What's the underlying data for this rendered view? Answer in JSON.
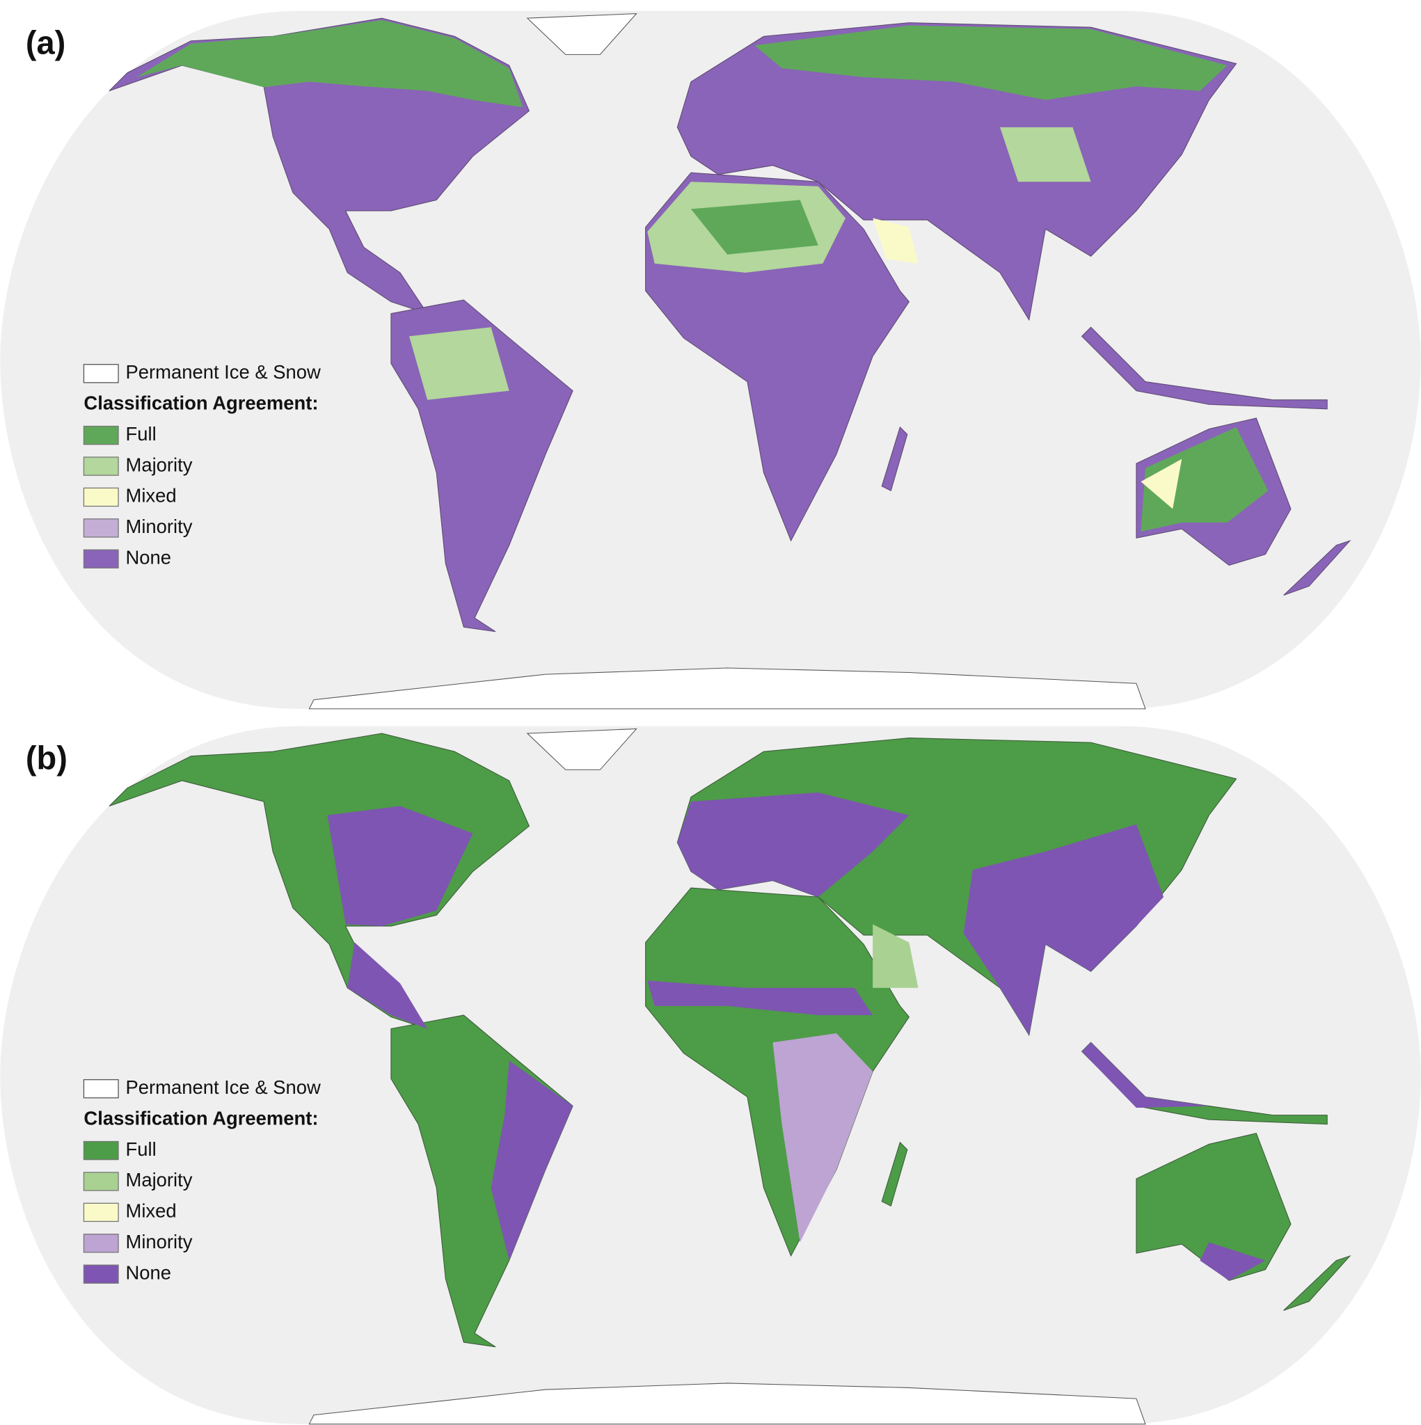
{
  "panels": [
    {
      "label": "(a)",
      "legend": {
        "ice_label": "Permanent Ice & Snow",
        "title": "Classification Agreement:",
        "items": [
          {
            "label": "Full",
            "color": "#5fa85a"
          },
          {
            "label": "Majority",
            "color": "#b3d79c"
          },
          {
            "label": "Mixed",
            "color": "#fafac8"
          },
          {
            "label": "Minority",
            "color": "#c4aed6"
          },
          {
            "label": "None",
            "color": "#8a64b8"
          }
        ]
      }
    },
    {
      "label": "(b)",
      "legend": {
        "ice_label": "Permanent Ice & Snow",
        "title": "Classification Agreement:",
        "items": [
          {
            "label": "Full",
            "color": "#4d9c47"
          },
          {
            "label": "Majority",
            "color": "#a9d192"
          },
          {
            "label": "Mixed",
            "color": "#fafac8"
          },
          {
            "label": "Minority",
            "color": "#bda4d2"
          },
          {
            "label": "None",
            "color": "#7e55b2"
          }
        ]
      }
    }
  ]
}
